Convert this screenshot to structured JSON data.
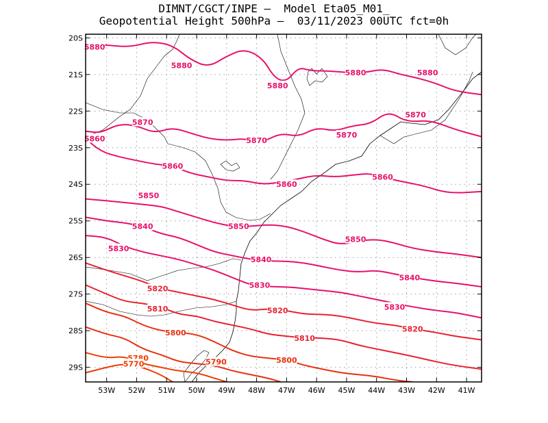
{
  "header": {
    "line1": "DIMNT/CGCT/INPE –  Model Eta05_M01_",
    "line2": "Geopotential Height 500hPa –  03/11/2023 00UTC fct=0h"
  },
  "map": {
    "lon_range": [
      -53.7,
      -40.5
    ],
    "lat_range": [
      -29.4,
      -19.9
    ],
    "lat_ticks": [
      {
        "value": -20,
        "label": "20S"
      },
      {
        "value": -21,
        "label": "21S"
      },
      {
        "value": -22,
        "label": "22S"
      },
      {
        "value": -23,
        "label": "23S"
      },
      {
        "value": -24,
        "label": "24S"
      },
      {
        "value": -25,
        "label": "25S"
      },
      {
        "value": -26,
        "label": "26S"
      },
      {
        "value": -27,
        "label": "27S"
      },
      {
        "value": -28,
        "label": "28S"
      },
      {
        "value": -29,
        "label": "29S"
      }
    ],
    "lon_ticks": [
      {
        "value": -53,
        "label": "53W"
      },
      {
        "value": -52,
        "label": "52W"
      },
      {
        "value": -51,
        "label": "51W"
      },
      {
        "value": -50,
        "label": "50W"
      },
      {
        "value": -49,
        "label": "49W"
      },
      {
        "value": -48,
        "label": "48W"
      },
      {
        "value": -47,
        "label": "47W"
      },
      {
        "value": -46,
        "label": "46W"
      },
      {
        "value": -45,
        "label": "45W"
      },
      {
        "value": -44,
        "label": "44W"
      },
      {
        "value": -43,
        "label": "43W"
      },
      {
        "value": -42,
        "label": "42W"
      },
      {
        "value": -41,
        "label": "41W"
      }
    ],
    "colors": {
      "frame": "#000000",
      "grid": "#9a9a9a",
      "coast": "#000000"
    }
  },
  "contours": [
    {
      "label": "5880",
      "color": "#e8106a",
      "pts": [
        [
          -53.7,
          -20.15
        ],
        [
          -53,
          -20.2
        ],
        [
          -52.2,
          -20.25
        ],
        [
          -51.5,
          -20.1
        ],
        [
          -50.8,
          -20.2
        ],
        [
          -50.2,
          -20.6
        ],
        [
          -49.6,
          -20.8
        ],
        [
          -49.0,
          -20.5
        ],
        [
          -48.4,
          -20.3
        ],
        [
          -47.8,
          -20.55
        ],
        [
          -47.4,
          -21.1
        ],
        [
          -47.0,
          -21.2
        ],
        [
          -46.6,
          -20.8
        ],
        [
          -46.2,
          -20.9
        ],
        [
          -45.6,
          -20.9
        ],
        [
          -45.0,
          -20.95
        ],
        [
          -44.4,
          -20.95
        ],
        [
          -43.8,
          -20.85
        ],
        [
          -43.2,
          -21.0
        ],
        [
          -42.6,
          -21.1
        ],
        [
          -42.0,
          -21.25
        ],
        [
          -41.4,
          -21.45
        ],
        [
          -40.5,
          -21.55
        ]
      ],
      "labels": [
        {
          "text": "5880",
          "lon": -53.4,
          "lat": -20.25
        },
        {
          "text": "5880",
          "lon": -50.5,
          "lat": -20.75
        },
        {
          "text": "5880",
          "lon": -47.3,
          "lat": -21.3
        },
        {
          "text": "5880",
          "lon": -44.7,
          "lat": -20.95
        },
        {
          "text": "5880",
          "lon": -42.3,
          "lat": -20.95
        }
      ]
    },
    {
      "label": "5870",
      "color": "#e8106a",
      "pts": [
        [
          -53.7,
          -22.55
        ],
        [
          -53.2,
          -22.6
        ],
        [
          -52.6,
          -22.35
        ],
        [
          -52.0,
          -22.4
        ],
        [
          -51.4,
          -22.6
        ],
        [
          -50.8,
          -22.45
        ],
        [
          -50.2,
          -22.6
        ],
        [
          -49.6,
          -22.75
        ],
        [
          -49.0,
          -22.8
        ],
        [
          -48.4,
          -22.75
        ],
        [
          -47.8,
          -22.85
        ],
        [
          -47.2,
          -22.6
        ],
        [
          -46.6,
          -22.7
        ],
        [
          -46.0,
          -22.45
        ],
        [
          -45.4,
          -22.55
        ],
        [
          -44.8,
          -22.4
        ],
        [
          -44.2,
          -22.35
        ],
        [
          -43.6,
          -22.0
        ],
        [
          -43.0,
          -22.3
        ],
        [
          -42.2,
          -22.25
        ],
        [
          -41.4,
          -22.5
        ],
        [
          -40.5,
          -22.7
        ]
      ],
      "labels": [
        {
          "text": "5870",
          "lon": -51.8,
          "lat": -22.3
        },
        {
          "text": "5870",
          "lon": -48.0,
          "lat": -22.8
        },
        {
          "text": "5870",
          "lon": -45.0,
          "lat": -22.65
        },
        {
          "text": "5870",
          "lon": -42.7,
          "lat": -22.1
        }
      ]
    },
    {
      "label": "5860",
      "color": "#e8106a",
      "pts": [
        [
          -53.7,
          -22.75
        ],
        [
          -53.2,
          -23.1
        ],
        [
          -52.6,
          -23.25
        ],
        [
          -52.0,
          -23.35
        ],
        [
          -51.4,
          -23.45
        ],
        [
          -50.8,
          -23.5
        ],
        [
          -50.2,
          -23.7
        ],
        [
          -49.6,
          -23.8
        ],
        [
          -49.0,
          -23.9
        ],
        [
          -48.4,
          -23.9
        ],
        [
          -47.8,
          -24.0
        ],
        [
          -47.2,
          -23.95
        ],
        [
          -46.6,
          -23.85
        ],
        [
          -46.0,
          -23.75
        ],
        [
          -45.4,
          -23.8
        ],
        [
          -44.8,
          -23.75
        ],
        [
          -44.2,
          -23.7
        ],
        [
          -43.6,
          -23.85
        ],
        [
          -43.0,
          -23.95
        ],
        [
          -42.4,
          -24.05
        ],
        [
          -41.6,
          -24.25
        ],
        [
          -40.5,
          -24.2
        ]
      ],
      "labels": [
        {
          "text": "5860",
          "lon": -53.4,
          "lat": -22.75
        },
        {
          "text": "5860",
          "lon": -50.8,
          "lat": -23.5
        },
        {
          "text": "5860",
          "lon": -47.0,
          "lat": -24.0
        },
        {
          "text": "5860",
          "lon": -43.8,
          "lat": -23.8
        }
      ]
    },
    {
      "label": "5850",
      "color": "#e8106a",
      "pts": [
        [
          -53.7,
          -24.4
        ],
        [
          -53.0,
          -24.45
        ],
        [
          -52.4,
          -24.5
        ],
        [
          -51.8,
          -24.55
        ],
        [
          -51.2,
          -24.6
        ],
        [
          -50.6,
          -24.75
        ],
        [
          -50.0,
          -24.9
        ],
        [
          -49.4,
          -25.05
        ],
        [
          -48.8,
          -25.15
        ],
        [
          -48.2,
          -25.15
        ],
        [
          -47.6,
          -25.1
        ],
        [
          -47.0,
          -25.15
        ],
        [
          -46.4,
          -25.3
        ],
        [
          -45.8,
          -25.5
        ],
        [
          -45.2,
          -25.65
        ],
        [
          -44.6,
          -25.55
        ],
        [
          -44.0,
          -25.5
        ],
        [
          -43.4,
          -25.6
        ],
        [
          -42.8,
          -25.75
        ],
        [
          -42.0,
          -25.85
        ],
        [
          -41.4,
          -25.9
        ],
        [
          -40.5,
          -26.0
        ]
      ],
      "labels": [
        {
          "text": "5850",
          "lon": -51.6,
          "lat": -24.3
        },
        {
          "text": "5850",
          "lon": -48.6,
          "lat": -25.15
        },
        {
          "text": "5850",
          "lon": -44.7,
          "lat": -25.5
        }
      ]
    },
    {
      "label": "5840",
      "color": "#e8106a",
      "pts": [
        [
          -53.7,
          -24.9
        ],
        [
          -53.0,
          -25.0
        ],
        [
          -52.4,
          -25.05
        ],
        [
          -51.8,
          -25.15
        ],
        [
          -51.2,
          -25.35
        ],
        [
          -50.6,
          -25.45
        ],
        [
          -50.0,
          -25.65
        ],
        [
          -49.4,
          -25.85
        ],
        [
          -48.8,
          -25.95
        ],
        [
          -48.2,
          -26.05
        ],
        [
          -47.6,
          -26.1
        ],
        [
          -47.0,
          -26.1
        ],
        [
          -46.4,
          -26.15
        ],
        [
          -45.8,
          -26.25
        ],
        [
          -45.2,
          -26.35
        ],
        [
          -44.6,
          -26.4
        ],
        [
          -44.0,
          -26.35
        ],
        [
          -43.4,
          -26.45
        ],
        [
          -42.8,
          -26.55
        ],
        [
          -42.0,
          -26.65
        ],
        [
          -41.4,
          -26.7
        ],
        [
          -40.5,
          -26.8
        ]
      ],
      "labels": [
        {
          "text": "5840",
          "lon": -51.8,
          "lat": -25.15
        },
        {
          "text": "5840",
          "lon": -47.85,
          "lat": -26.05
        },
        {
          "text": "5840",
          "lon": -42.9,
          "lat": -26.55
        }
      ]
    },
    {
      "label": "5830",
      "color": "#e8106a",
      "pts": [
        [
          -53.7,
          -25.4
        ],
        [
          -53.0,
          -25.45
        ],
        [
          -52.4,
          -25.7
        ],
        [
          -51.8,
          -25.85
        ],
        [
          -51.2,
          -25.95
        ],
        [
          -50.6,
          -26.05
        ],
        [
          -50.0,
          -26.2
        ],
        [
          -49.4,
          -26.35
        ],
        [
          -48.8,
          -26.55
        ],
        [
          -48.2,
          -26.75
        ],
        [
          -47.6,
          -26.8
        ],
        [
          -47.0,
          -26.8
        ],
        [
          -46.4,
          -26.85
        ],
        [
          -45.8,
          -26.9
        ],
        [
          -45.2,
          -26.95
        ],
        [
          -44.6,
          -27.05
        ],
        [
          -44.0,
          -27.15
        ],
        [
          -43.4,
          -27.25
        ],
        [
          -42.8,
          -27.35
        ],
        [
          -42.0,
          -27.45
        ],
        [
          -41.4,
          -27.5
        ],
        [
          -40.5,
          -27.65
        ]
      ],
      "labels": [
        {
          "text": "5830",
          "lon": -52.6,
          "lat": -25.75
        },
        {
          "text": "5830",
          "lon": -47.9,
          "lat": -26.75
        },
        {
          "text": "5830",
          "lon": -43.4,
          "lat": -27.35
        }
      ]
    },
    {
      "label": "5820",
      "color": "#e82030",
      "pts": [
        [
          -53.7,
          -26.15
        ],
        [
          -53.0,
          -26.35
        ],
        [
          -52.4,
          -26.5
        ],
        [
          -51.8,
          -26.65
        ],
        [
          -51.2,
          -26.85
        ],
        [
          -50.6,
          -26.95
        ],
        [
          -50.0,
          -27.05
        ],
        [
          -49.4,
          -27.15
        ],
        [
          -48.8,
          -27.3
        ],
        [
          -48.2,
          -27.45
        ],
        [
          -47.6,
          -27.4
        ],
        [
          -47.0,
          -27.45
        ],
        [
          -46.4,
          -27.55
        ],
        [
          -45.8,
          -27.55
        ],
        [
          -45.2,
          -27.6
        ],
        [
          -44.6,
          -27.7
        ],
        [
          -44.0,
          -27.8
        ],
        [
          -43.4,
          -27.85
        ],
        [
          -42.8,
          -27.95
        ],
        [
          -42.0,
          -28.05
        ],
        [
          -41.4,
          -28.15
        ],
        [
          -40.5,
          -28.25
        ]
      ],
      "labels": [
        {
          "text": "5820",
          "lon": -51.3,
          "lat": -26.85
        },
        {
          "text": "5820",
          "lon": -47.3,
          "lat": -27.45
        },
        {
          "text": "5820",
          "lon": -42.8,
          "lat": -27.95
        }
      ]
    },
    {
      "label": "5810",
      "color": "#e82030",
      "pts": [
        [
          -53.7,
          -26.75
        ],
        [
          -53.0,
          -27.0
        ],
        [
          -52.4,
          -27.2
        ],
        [
          -51.8,
          -27.25
        ],
        [
          -51.2,
          -27.35
        ],
        [
          -50.6,
          -27.55
        ],
        [
          -50.0,
          -27.6
        ],
        [
          -49.4,
          -27.75
        ],
        [
          -48.8,
          -27.85
        ],
        [
          -48.2,
          -27.95
        ],
        [
          -47.6,
          -28.1
        ],
        [
          -47.0,
          -28.15
        ],
        [
          -46.4,
          -28.2
        ],
        [
          -45.8,
          -28.2
        ],
        [
          -45.2,
          -28.25
        ],
        [
          -44.6,
          -28.4
        ],
        [
          -44.0,
          -28.5
        ],
        [
          -43.4,
          -28.6
        ],
        [
          -42.8,
          -28.7
        ],
        [
          -42.0,
          -28.85
        ],
        [
          -41.4,
          -28.95
        ],
        [
          -40.5,
          -29.05
        ]
      ],
      "labels": [
        {
          "text": "5810",
          "lon": -51.3,
          "lat": -27.4
        },
        {
          "text": "5810",
          "lon": -46.4,
          "lat": -28.2
        }
      ]
    },
    {
      "label": "5800",
      "color": "#e83010",
      "pts": [
        [
          -53.7,
          -27.25
        ],
        [
          -53.0,
          -27.5
        ],
        [
          -52.4,
          -27.6
        ],
        [
          -51.8,
          -27.85
        ],
        [
          -51.2,
          -28.0
        ],
        [
          -50.6,
          -28.05
        ],
        [
          -50.0,
          -28.1
        ],
        [
          -49.4,
          -28.3
        ],
        [
          -48.8,
          -28.55
        ],
        [
          -48.2,
          -28.7
        ],
        [
          -47.6,
          -28.75
        ],
        [
          -47.0,
          -28.8
        ],
        [
          -46.4,
          -28.95
        ],
        [
          -45.8,
          -29.05
        ],
        [
          -45.2,
          -29.15
        ],
        [
          -44.6,
          -29.2
        ],
        [
          -44.0,
          -29.25
        ],
        [
          -43.4,
          -29.35
        ],
        [
          -42.8,
          -29.4
        ]
      ],
      "labels": [
        {
          "text": "5800",
          "lon": -50.7,
          "lat": -28.05
        },
        {
          "text": "5800",
          "lon": -47.0,
          "lat": -28.8
        }
      ]
    },
    {
      "label": "5790",
      "color": "#e83010",
      "pts": [
        [
          -53.7,
          -27.9
        ],
        [
          -53.0,
          -28.1
        ],
        [
          -52.4,
          -28.2
        ],
        [
          -51.8,
          -28.5
        ],
        [
          -51.2,
          -28.65
        ],
        [
          -50.6,
          -28.85
        ],
        [
          -50.0,
          -28.9
        ],
        [
          -49.4,
          -28.95
        ],
        [
          -48.8,
          -29.1
        ],
        [
          -48.2,
          -29.2
        ],
        [
          -47.6,
          -29.3
        ],
        [
          -47.2,
          -29.4
        ]
      ],
      "labels": [
        {
          "text": "5790",
          "lon": -49.35,
          "lat": -28.85
        }
      ]
    },
    {
      "label": "5780",
      "color": "#f03a00",
      "pts": [
        [
          -53.7,
          -28.6
        ],
        [
          -53.0,
          -28.75
        ],
        [
          -52.4,
          -28.7
        ],
        [
          -51.8,
          -28.9
        ],
        [
          -51.2,
          -29.0
        ],
        [
          -50.6,
          -29.1
        ],
        [
          -50.0,
          -29.15
        ],
        [
          -49.4,
          -29.3
        ],
        [
          -49.0,
          -29.4
        ]
      ],
      "labels": [
        {
          "text": "5780",
          "lon": -51.95,
          "lat": -28.75
        }
      ]
    },
    {
      "label": "5770",
      "color": "#f03a00",
      "pts": [
        [
          -53.7,
          -29.15
        ],
        [
          -53.0,
          -29.0
        ],
        [
          -52.4,
          -28.9
        ],
        [
          -51.8,
          -29.0
        ],
        [
          -51.2,
          -29.2
        ],
        [
          -50.8,
          -29.4
        ]
      ],
      "labels": [
        {
          "text": "5770",
          "lon": -52.1,
          "lat": -28.9
        }
      ]
    }
  ]
}
